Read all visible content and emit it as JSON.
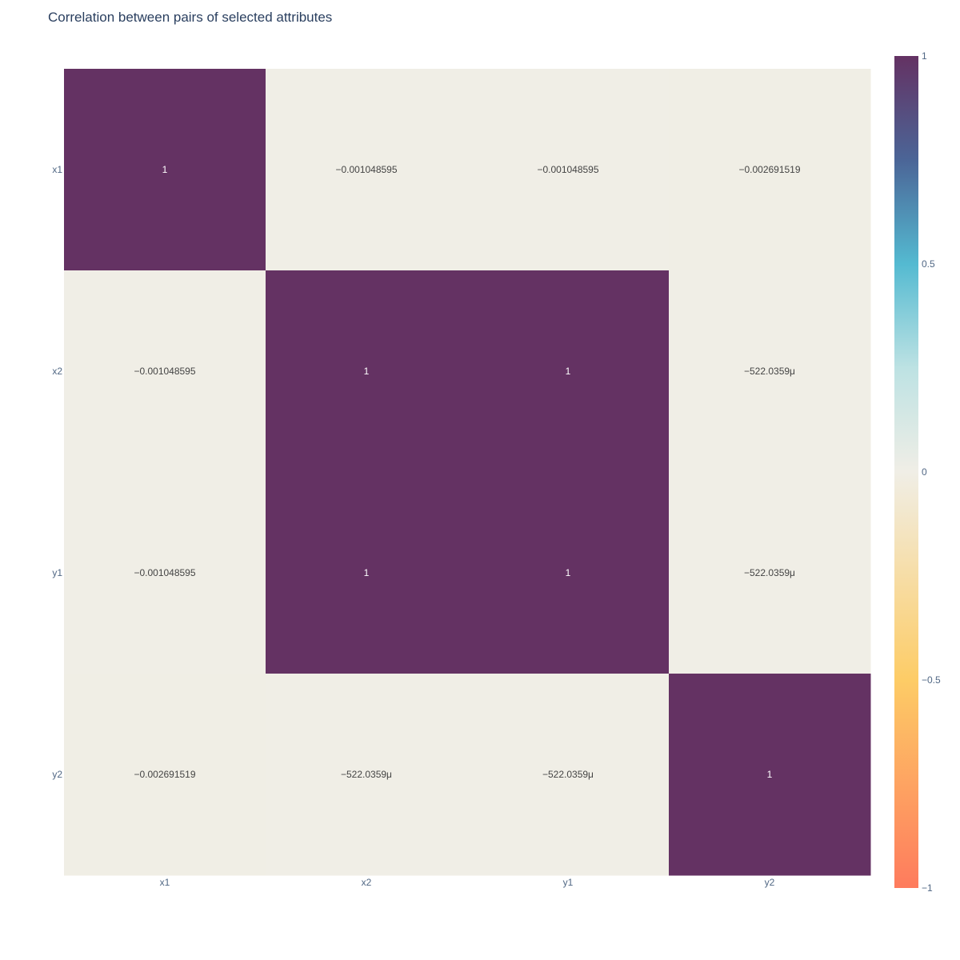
{
  "chart_data": {
    "type": "heatmap",
    "title": "Correlation between pairs of selected attributes",
    "x_categories": [
      "x1",
      "x2",
      "y1",
      "y2"
    ],
    "y_categories": [
      "x1",
      "x2",
      "y1",
      "y2"
    ],
    "z": [
      [
        1,
        -0.001048595,
        -0.001048595,
        -0.002691519
      ],
      [
        -0.001048595,
        1,
        1,
        -0.0005220359
      ],
      [
        -0.001048595,
        1,
        1,
        -0.0005220359
      ],
      [
        -0.002691519,
        -0.0005220359,
        -0.0005220359,
        1
      ]
    ],
    "cell_labels": [
      [
        "1",
        "−0.001048595",
        "−0.001048595",
        "−0.002691519"
      ],
      [
        "−0.001048595",
        "1",
        "1",
        "−522.0359μ"
      ],
      [
        "−0.001048595",
        "1",
        "1",
        "−522.0359μ"
      ],
      [
        "−0.002691519",
        "−522.0359μ",
        "−522.0359μ",
        "1"
      ]
    ],
    "zmin": -1,
    "zmax": 1,
    "colorscale": [
      [
        0,
        "#fe7b5d"
      ],
      [
        0.25,
        "#fdcc66"
      ],
      [
        0.5,
        "#f0eee6"
      ],
      [
        0.625,
        "#bde2e3"
      ],
      [
        0.75,
        "#54bad1"
      ],
      [
        0.875,
        "#4b6597"
      ],
      [
        1,
        "#643263"
      ]
    ],
    "colorbar": {
      "ticks": [
        1,
        0.5,
        0,
        -0.5,
        -1
      ],
      "tick_labels": [
        "1",
        "0.5",
        "0",
        "−0.5",
        "−1"
      ]
    },
    "legend": "colorbar-right"
  }
}
